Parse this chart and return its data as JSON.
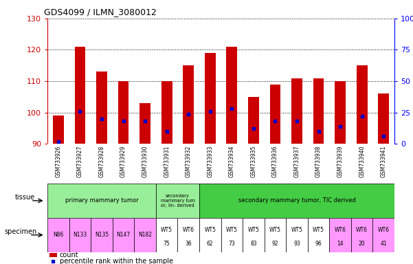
{
  "title": "GDS4099 / ILMN_3080012",
  "samples": [
    "GSM733926",
    "GSM733927",
    "GSM733928",
    "GSM733929",
    "GSM733930",
    "GSM733931",
    "GSM733932",
    "GSM733933",
    "GSM733934",
    "GSM733935",
    "GSM733936",
    "GSM733937",
    "GSM733938",
    "GSM733939",
    "GSM733940",
    "GSM733941"
  ],
  "counts": [
    99,
    121,
    113,
    110,
    103,
    110,
    115,
    119,
    121,
    105,
    109,
    111,
    111,
    110,
    115,
    106
  ],
  "percentile_ranks": [
    2,
    26,
    20,
    18,
    18,
    10,
    24,
    26,
    28,
    12,
    18,
    18,
    10,
    14,
    22,
    6
  ],
  "ymin": 90,
  "ymax": 130,
  "yticks_left": [
    90,
    100,
    110,
    120,
    130
  ],
  "yticks_right": [
    0,
    25,
    50,
    75,
    100
  ],
  "bar_color": "#cc0000",
  "dot_color": "#0000cc",
  "specimen_labels_line1": [
    "N86",
    "N133",
    "N135",
    "N147",
    "N182",
    "WT5",
    "WT6",
    "WT5",
    "WT5",
    "WT5",
    "WT5",
    "WT5",
    "WT5",
    "WT6",
    "WT6",
    "WT6"
  ],
  "specimen_labels_line2": [
    "",
    "",
    "",
    "",
    "",
    "75",
    "36",
    "62",
    "73",
    "83",
    "92",
    "93",
    "96",
    "14",
    "20",
    "41"
  ],
  "specimen_colors": [
    "#ff99ff",
    "#ff99ff",
    "#ff99ff",
    "#ff99ff",
    "#ff99ff",
    "#ffffff",
    "#ffffff",
    "#ffffff",
    "#ffffff",
    "#ffffff",
    "#ffffff",
    "#ffffff",
    "#ffffff",
    "#ff99ff",
    "#ff99ff",
    "#ff99ff"
  ],
  "tissue_green_light": "#99ee99",
  "tissue_green_dark": "#44cc44",
  "specimen_pink": "#ff99ff",
  "xticklabel_bg": "#cccccc",
  "bar_width": 0.5
}
